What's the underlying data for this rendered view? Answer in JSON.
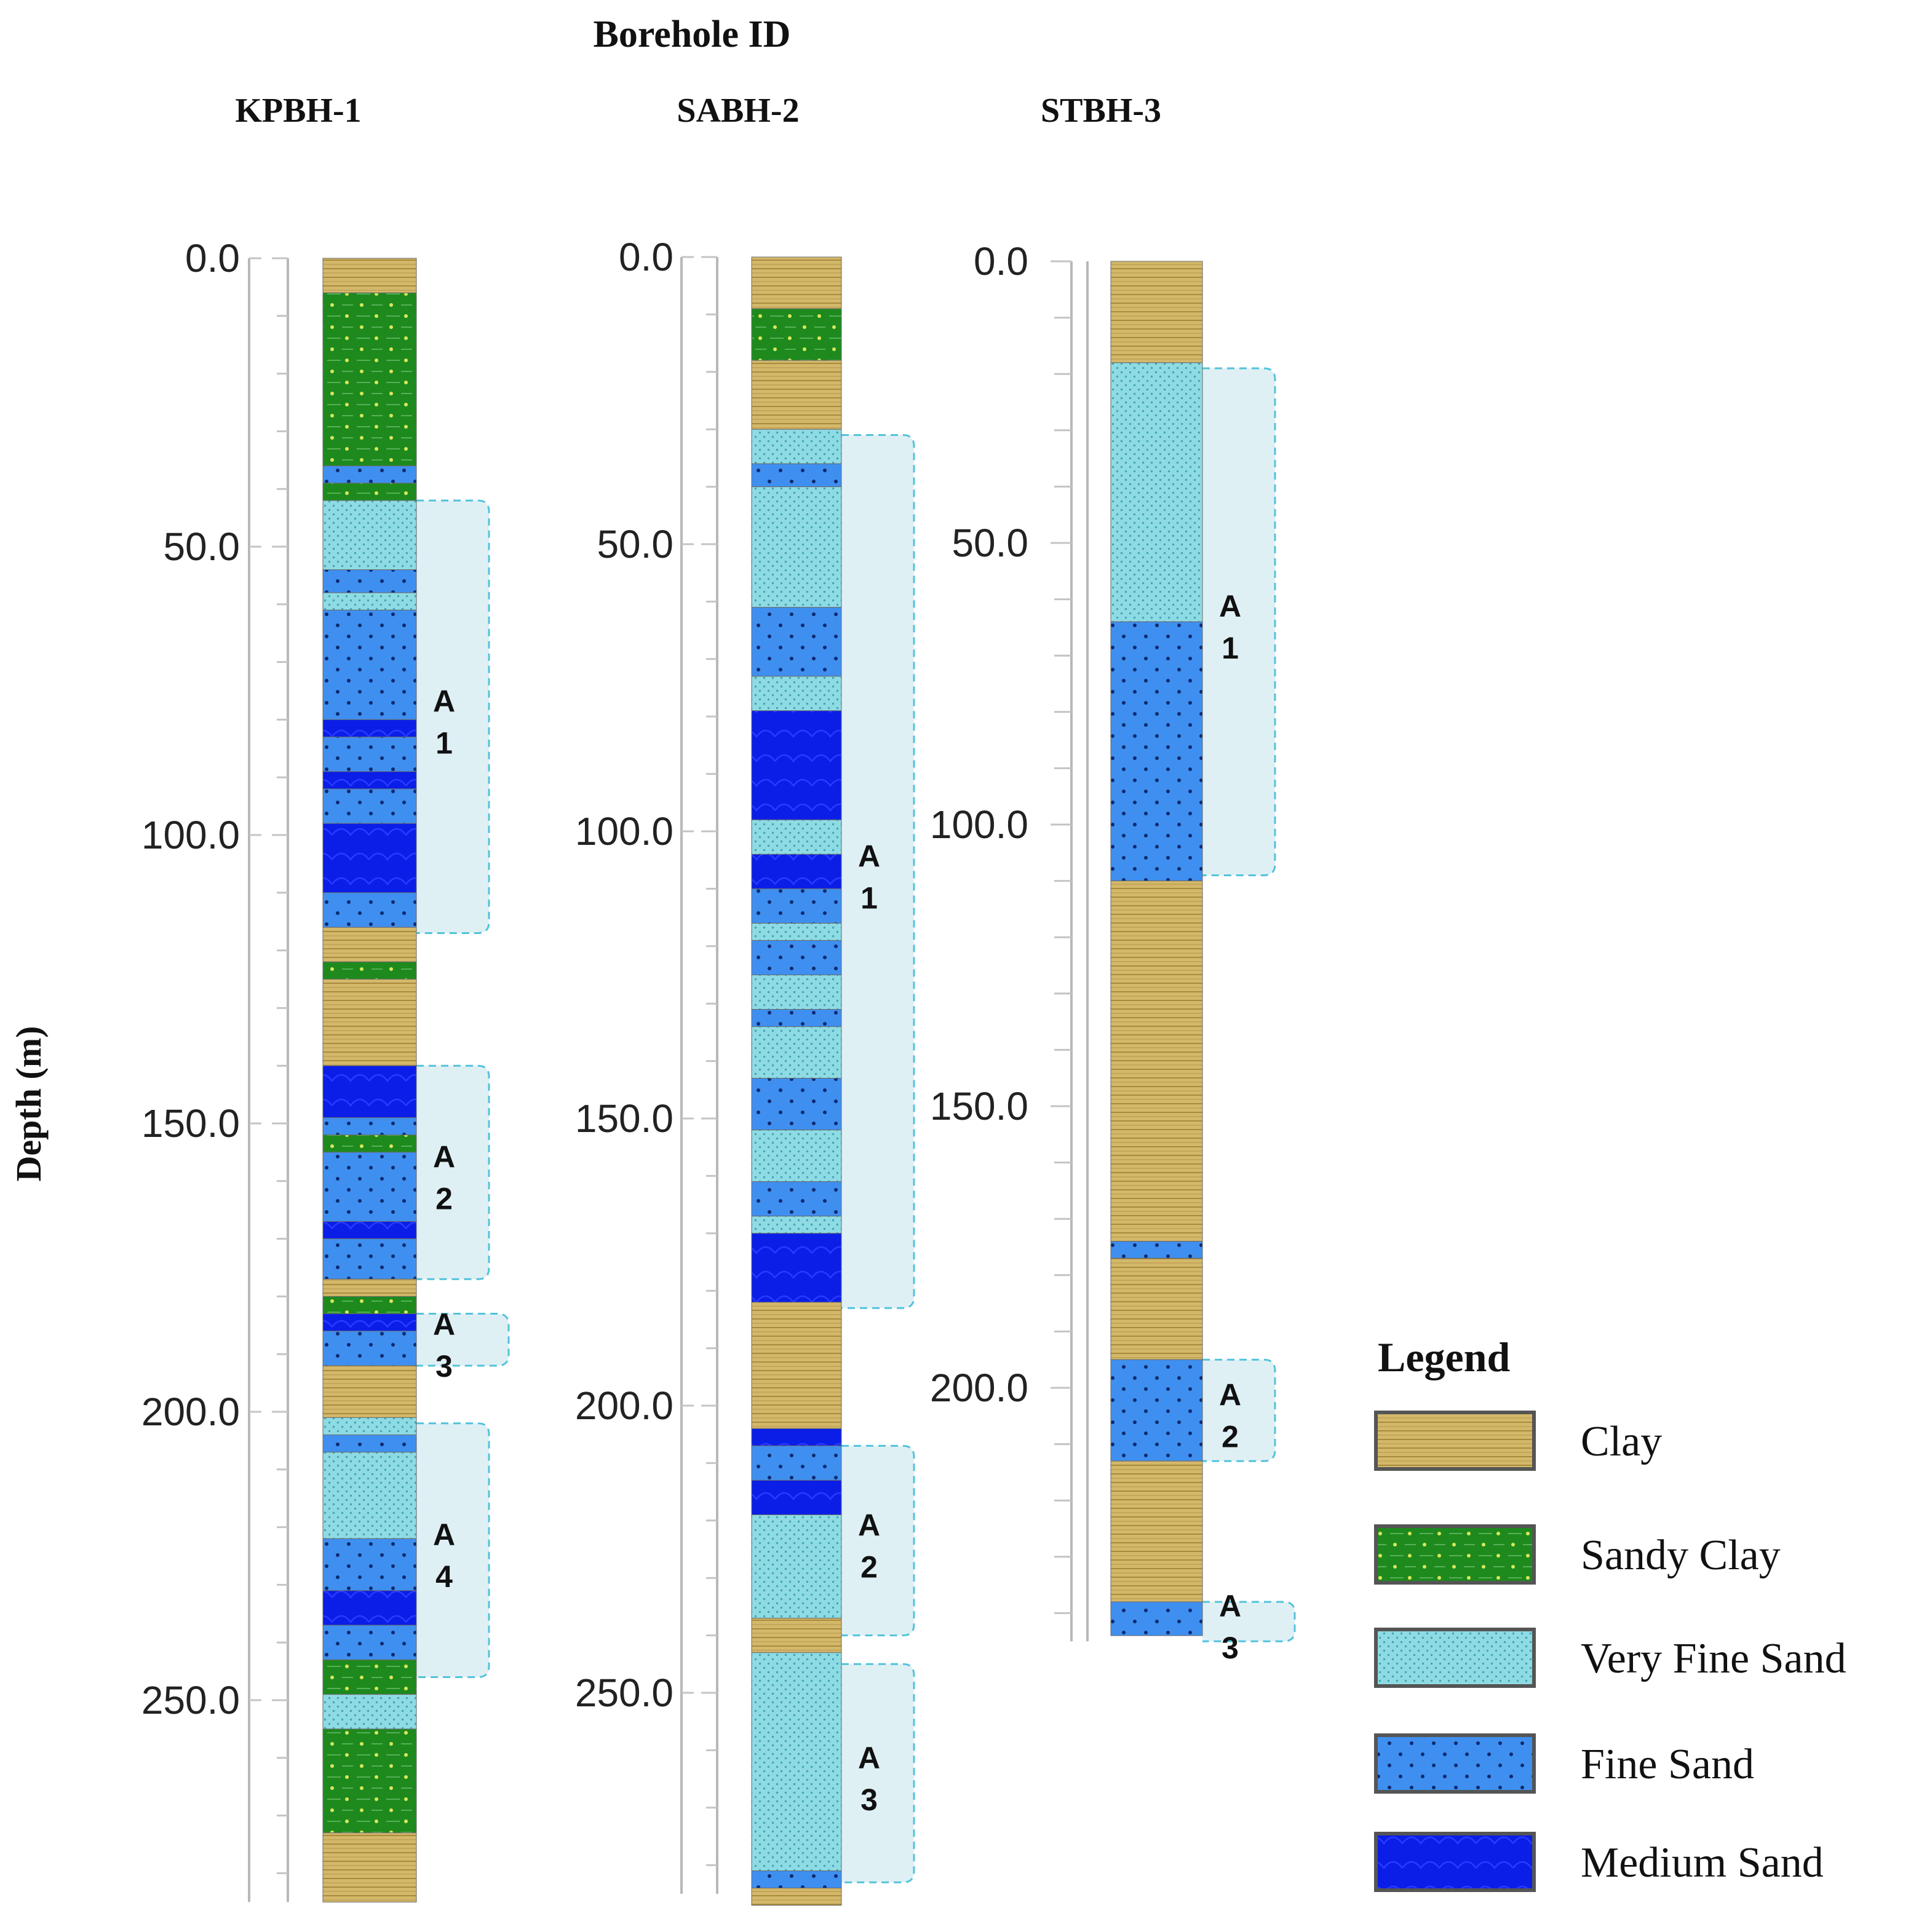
{
  "chart_data": {
    "type": "borehole-log",
    "title": "Borehole ID",
    "ylabel": "Depth (m)",
    "y_unit": "m",
    "colors": {
      "Clay": "#d4b86a",
      "Sandy Clay": "#1e8a1e",
      "Very Fine Sand": "#8fdbe3",
      "Fine Sand": "#3f8ff0",
      "Medium Sand": "#0a1ee8",
      "aquifer_fill": "#dff0f5",
      "aquifer_border": "#52c3da"
    },
    "legend": {
      "title": "Legend",
      "items": [
        "Clay",
        "Sandy Clay",
        "Very Fine Sand",
        "Fine Sand",
        "Medium Sand"
      ]
    },
    "boreholes": [
      {
        "id": "KPBH-1",
        "ticks": [
          "0.0",
          "50.0",
          "100.0",
          "150.0",
          "200.0",
          "250.0"
        ],
        "tick_values": [
          0,
          50,
          100,
          150,
          200,
          250
        ],
        "ylim": [
          0,
          285
        ],
        "layers": [
          {
            "top": 0,
            "bottom": 6,
            "lith": "Clay"
          },
          {
            "top": 6,
            "bottom": 36,
            "lith": "Sandy Clay"
          },
          {
            "top": 36,
            "bottom": 39,
            "lith": "Fine Sand"
          },
          {
            "top": 39,
            "bottom": 42,
            "lith": "Sandy Clay"
          },
          {
            "top": 42,
            "bottom": 54,
            "lith": "Very Fine Sand"
          },
          {
            "top": 54,
            "bottom": 58,
            "lith": "Fine Sand"
          },
          {
            "top": 58,
            "bottom": 61,
            "lith": "Very Fine Sand"
          },
          {
            "top": 61,
            "bottom": 80,
            "lith": "Fine Sand"
          },
          {
            "top": 80,
            "bottom": 83,
            "lith": "Medium Sand"
          },
          {
            "top": 83,
            "bottom": 89,
            "lith": "Fine Sand"
          },
          {
            "top": 89,
            "bottom": 92,
            "lith": "Medium Sand"
          },
          {
            "top": 92,
            "bottom": 98,
            "lith": "Fine Sand"
          },
          {
            "top": 98,
            "bottom": 110,
            "lith": "Medium Sand"
          },
          {
            "top": 110,
            "bottom": 116,
            "lith": "Fine Sand"
          },
          {
            "top": 116,
            "bottom": 122,
            "lith": "Clay"
          },
          {
            "top": 122,
            "bottom": 125,
            "lith": "Sandy Clay"
          },
          {
            "top": 125,
            "bottom": 140,
            "lith": "Clay"
          },
          {
            "top": 140,
            "bottom": 149,
            "lith": "Medium Sand"
          },
          {
            "top": 149,
            "bottom": 152,
            "lith": "Fine Sand"
          },
          {
            "top": 152,
            "bottom": 155,
            "lith": "Sandy Clay"
          },
          {
            "top": 155,
            "bottom": 167,
            "lith": "Fine Sand"
          },
          {
            "top": 167,
            "bottom": 170,
            "lith": "Medium Sand"
          },
          {
            "top": 170,
            "bottom": 177,
            "lith": "Fine Sand"
          },
          {
            "top": 177,
            "bottom": 180,
            "lith": "Clay"
          },
          {
            "top": 180,
            "bottom": 183,
            "lith": "Sandy Clay"
          },
          {
            "top": 183,
            "bottom": 186,
            "lith": "Medium Sand"
          },
          {
            "top": 186,
            "bottom": 192,
            "lith": "Fine Sand"
          },
          {
            "top": 192,
            "bottom": 201,
            "lith": "Clay"
          },
          {
            "top": 201,
            "bottom": 204,
            "lith": "Very Fine Sand"
          },
          {
            "top": 204,
            "bottom": 207,
            "lith": "Fine Sand"
          },
          {
            "top": 207,
            "bottom": 222,
            "lith": "Very Fine Sand"
          },
          {
            "top": 222,
            "bottom": 231,
            "lith": "Fine Sand"
          },
          {
            "top": 231,
            "bottom": 237,
            "lith": "Medium Sand"
          },
          {
            "top": 237,
            "bottom": 243,
            "lith": "Fine Sand"
          },
          {
            "top": 243,
            "bottom": 249,
            "lith": "Sandy Clay"
          },
          {
            "top": 249,
            "bottom": 255,
            "lith": "Very Fine Sand"
          },
          {
            "top": 255,
            "bottom": 273,
            "lith": "Sandy Clay"
          },
          {
            "top": 273,
            "bottom": 285,
            "lith": "Clay"
          }
        ],
        "aquifers": [
          {
            "top": 42,
            "bottom": 117,
            "line1": "A",
            "line2": "1"
          },
          {
            "top": 140,
            "bottom": 177,
            "line1": "A",
            "line2": "2"
          },
          {
            "top": 183,
            "bottom": 192,
            "line1": "A",
            "line2": "3"
          },
          {
            "top": 202,
            "bottom": 246,
            "line1": "A",
            "line2": "4"
          }
        ]
      },
      {
        "id": "SABH-2",
        "ticks": [
          "0.0",
          "50.0",
          "100.0",
          "150.0",
          "200.0",
          "250.0"
        ],
        "tick_values": [
          0,
          50,
          100,
          150,
          200,
          250
        ],
        "ylim": [
          0,
          285
        ],
        "layers": [
          {
            "top": 0,
            "bottom": 9,
            "lith": "Clay"
          },
          {
            "top": 9,
            "bottom": 18,
            "lith": "Sandy Clay"
          },
          {
            "top": 18,
            "bottom": 30,
            "lith": "Clay"
          },
          {
            "top": 30,
            "bottom": 36,
            "lith": "Very Fine Sand"
          },
          {
            "top": 36,
            "bottom": 40,
            "lith": "Fine Sand"
          },
          {
            "top": 40,
            "bottom": 61,
            "lith": "Very Fine Sand"
          },
          {
            "top": 61,
            "bottom": 73,
            "lith": "Fine Sand"
          },
          {
            "top": 73,
            "bottom": 79,
            "lith": "Very Fine Sand"
          },
          {
            "top": 79,
            "bottom": 98,
            "lith": "Medium Sand"
          },
          {
            "top": 98,
            "bottom": 104,
            "lith": "Very Fine Sand"
          },
          {
            "top": 104,
            "bottom": 110,
            "lith": "Medium Sand"
          },
          {
            "top": 110,
            "bottom": 116,
            "lith": "Fine Sand"
          },
          {
            "top": 116,
            "bottom": 119,
            "lith": "Very Fine Sand"
          },
          {
            "top": 119,
            "bottom": 125,
            "lith": "Fine Sand"
          },
          {
            "top": 125,
            "bottom": 131,
            "lith": "Very Fine Sand"
          },
          {
            "top": 131,
            "bottom": 134,
            "lith": "Fine Sand"
          },
          {
            "top": 134,
            "bottom": 143,
            "lith": "Very Fine Sand"
          },
          {
            "top": 143,
            "bottom": 152,
            "lith": "Fine Sand"
          },
          {
            "top": 152,
            "bottom": 161,
            "lith": "Very Fine Sand"
          },
          {
            "top": 161,
            "bottom": 167,
            "lith": "Fine Sand"
          },
          {
            "top": 167,
            "bottom": 170,
            "lith": "Very Fine Sand"
          },
          {
            "top": 170,
            "bottom": 182,
            "lith": "Medium Sand"
          },
          {
            "top": 182,
            "bottom": 204,
            "lith": "Clay"
          },
          {
            "top": 204,
            "bottom": 207,
            "lith": "Medium Sand"
          },
          {
            "top": 207,
            "bottom": 213,
            "lith": "Fine Sand"
          },
          {
            "top": 213,
            "bottom": 219,
            "lith": "Medium Sand"
          },
          {
            "top": 219,
            "bottom": 237,
            "lith": "Very Fine Sand"
          },
          {
            "top": 237,
            "bottom": 243,
            "lith": "Clay"
          },
          {
            "top": 243,
            "bottom": 281,
            "lith": "Very Fine Sand"
          },
          {
            "top": 281,
            "bottom": 284,
            "lith": "Fine Sand"
          },
          {
            "top": 284,
            "bottom": 287,
            "lith": "Clay"
          }
        ],
        "aquifers": [
          {
            "top": 31,
            "bottom": 183,
            "line1": "A",
            "line2": "1"
          },
          {
            "top": 207,
            "bottom": 240,
            "line1": "A",
            "line2": "2"
          },
          {
            "top": 245,
            "bottom": 283,
            "line1": "A",
            "line2": "3"
          }
        ]
      },
      {
        "id": "STBH-3",
        "ticks": [
          "0.0",
          "50.0",
          "100.0",
          "150.0",
          "200.0"
        ],
        "tick_values": [
          0,
          50,
          100,
          150,
          200
        ],
        "ylim": [
          0,
          245
        ],
        "layers": [
          {
            "top": 0,
            "bottom": 18,
            "lith": "Clay"
          },
          {
            "top": 18,
            "bottom": 64,
            "lith": "Very Fine Sand"
          },
          {
            "top": 64,
            "bottom": 110,
            "lith": "Fine Sand"
          },
          {
            "top": 110,
            "bottom": 174,
            "lith": "Clay"
          },
          {
            "top": 174,
            "bottom": 177,
            "lith": "Fine Sand"
          },
          {
            "top": 177,
            "bottom": 195,
            "lith": "Clay"
          },
          {
            "top": 195,
            "bottom": 213,
            "lith": "Fine Sand"
          },
          {
            "top": 213,
            "bottom": 238,
            "lith": "Clay"
          },
          {
            "top": 238,
            "bottom": 244,
            "lith": "Fine Sand"
          }
        ],
        "aquifers": [
          {
            "top": 19,
            "bottom": 109,
            "line1": "A",
            "line2": "1"
          },
          {
            "top": 195,
            "bottom": 213,
            "line1": "A",
            "line2": "2"
          },
          {
            "top": 238,
            "bottom": 245,
            "line1": "A",
            "line2": "3"
          }
        ]
      }
    ]
  }
}
